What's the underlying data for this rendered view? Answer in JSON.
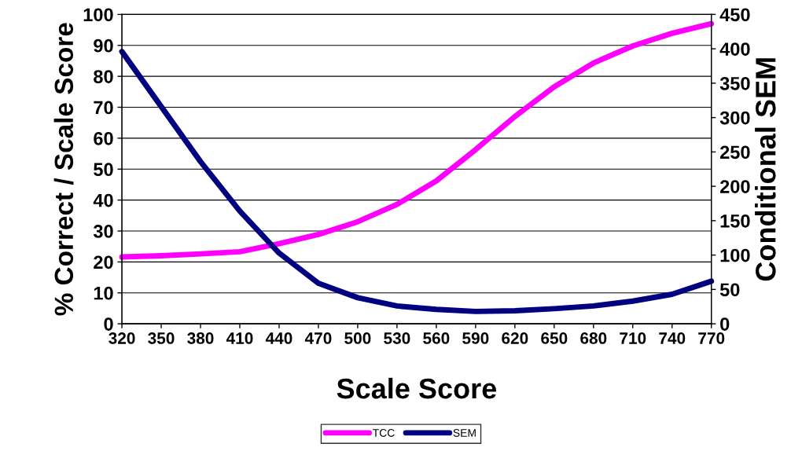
{
  "chart_data": {
    "type": "line",
    "xlabel": "Scale Score",
    "ylabel": "% Correct / Scale Score",
    "y2label": "Conditional SEM",
    "x": [
      320,
      350,
      380,
      410,
      440,
      470,
      500,
      530,
      560,
      590,
      620,
      650,
      680,
      710,
      740,
      770
    ],
    "series": [
      {
        "name": "TCC",
        "color": "#ff00ff",
        "values": [
          21.6,
          22,
          22.6,
          23.3,
          25.9,
          28.9,
          33,
          38.6,
          46.2,
          56.3,
          67,
          76.6,
          84.3,
          89.8,
          93.9,
          97
        ]
      },
      {
        "name": "SEM",
        "color": "#000080",
        "axis": "y2",
        "values": [
          396,
          316,
          236,
          164,
          103,
          59,
          38,
          26,
          21,
          18,
          19,
          22,
          26,
          33,
          43,
          62
        ]
      }
    ],
    "xlim": [
      320,
      770
    ],
    "xticks": [
      320,
      350,
      380,
      410,
      440,
      470,
      500,
      530,
      560,
      590,
      620,
      650,
      680,
      710,
      740,
      770
    ],
    "ylim": [
      0,
      100
    ],
    "yticks": [
      0,
      10,
      20,
      30,
      40,
      50,
      60,
      70,
      80,
      90,
      100
    ],
    "y2lim": [
      0,
      450
    ],
    "y2ticks": [
      0,
      50,
      100,
      150,
      200,
      250,
      300,
      350,
      400,
      450
    ],
    "grid": "y",
    "legend": "bottom",
    "marker": "none",
    "line_style": "solid"
  }
}
